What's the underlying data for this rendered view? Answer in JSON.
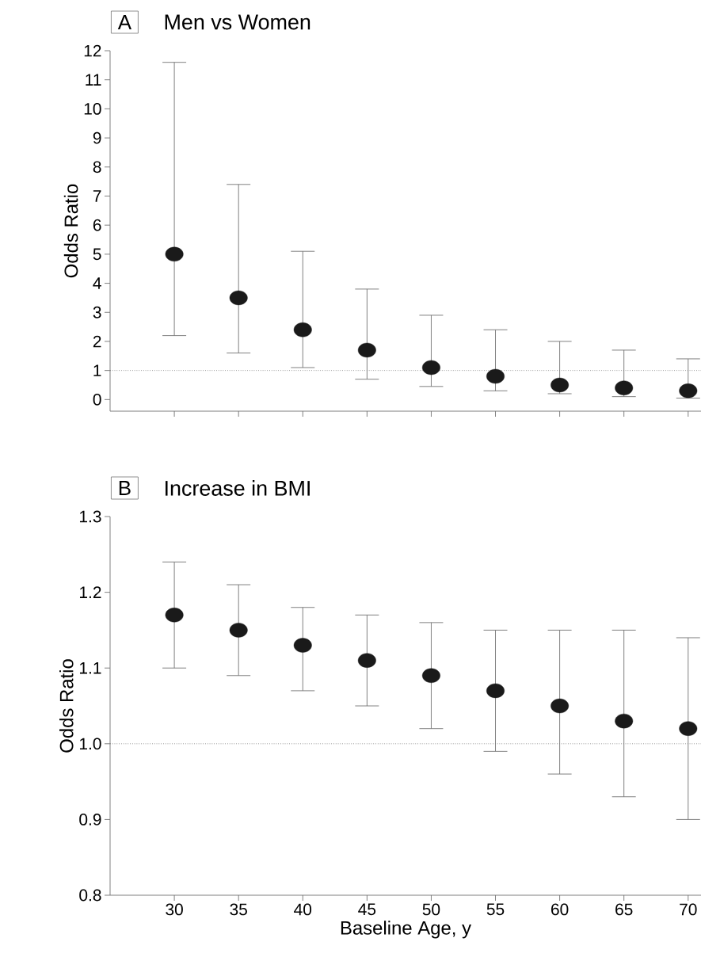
{
  "chart_data": [
    {
      "type": "scatter",
      "title": "Men vs Women",
      "annotations": [
        "A"
      ],
      "ylabel": "Odds Ratio",
      "marker": "circle",
      "tick_labels": "y",
      "x": [
        30,
        35,
        40,
        45,
        50,
        55,
        60,
        65,
        70
      ],
      "series": [
        {
          "color": "#1a1a1a",
          "values": [
            5.0,
            3.5,
            2.4,
            1.7,
            1.1,
            0.8,
            0.5,
            0.4,
            0.3
          ],
          "errors": [
            [
              2.2,
              11.6
            ],
            [
              1.6,
              7.4
            ],
            [
              1.1,
              5.1
            ],
            [
              0.7,
              3.8
            ],
            [
              0.45,
              2.9
            ],
            [
              0.3,
              2.4
            ],
            [
              0.2,
              2.0
            ],
            [
              0.1,
              1.7
            ],
            [
              0.05,
              1.4
            ]
          ]
        }
      ],
      "xlim": [
        25,
        71
      ],
      "ylim": [
        -0.4,
        12
      ],
      "xticks": [
        30,
        35,
        40,
        45,
        50,
        55,
        60,
        65,
        70
      ],
      "yticks": [
        0,
        1,
        2,
        3,
        4,
        5,
        6,
        7,
        8,
        9,
        10,
        11,
        12
      ],
      "ref_lines": [
        {
          "axis": "y",
          "value": 1,
          "line_style": "dotted",
          "color": "#666666"
        }
      ]
    },
    {
      "type": "scatter",
      "title": "Increase in BMI",
      "annotations": [
        "B"
      ],
      "ylabel": "Odds Ratio",
      "xlabel": "Baseline Age, y",
      "marker": "circle",
      "x": [
        30,
        35,
        40,
        45,
        50,
        55,
        60,
        65,
        70
      ],
      "series": [
        {
          "color": "#1a1a1a",
          "values": [
            1.17,
            1.15,
            1.13,
            1.11,
            1.09,
            1.07,
            1.05,
            1.03,
            1.02
          ],
          "errors": [
            [
              1.1,
              1.24
            ],
            [
              1.09,
              1.21
            ],
            [
              1.07,
              1.18
            ],
            [
              1.05,
              1.17
            ],
            [
              1.02,
              1.16
            ],
            [
              0.99,
              1.15
            ],
            [
              0.96,
              1.15
            ],
            [
              0.93,
              1.15
            ],
            [
              0.9,
              1.14
            ]
          ]
        }
      ],
      "xlim": [
        25,
        71
      ],
      "ylim": [
        0.8,
        1.3
      ],
      "xticks": [
        30,
        35,
        40,
        45,
        50,
        55,
        60,
        65,
        70
      ],
      "yticks": [
        0.8,
        0.9,
        {
          "value": 1.0,
          "label": "1.0"
        },
        1.1,
        1.2,
        1.3
      ],
      "ref_lines": [
        {
          "axis": "y",
          "value": 1.0,
          "line_style": "dotted",
          "color": "#666666"
        }
      ]
    }
  ]
}
